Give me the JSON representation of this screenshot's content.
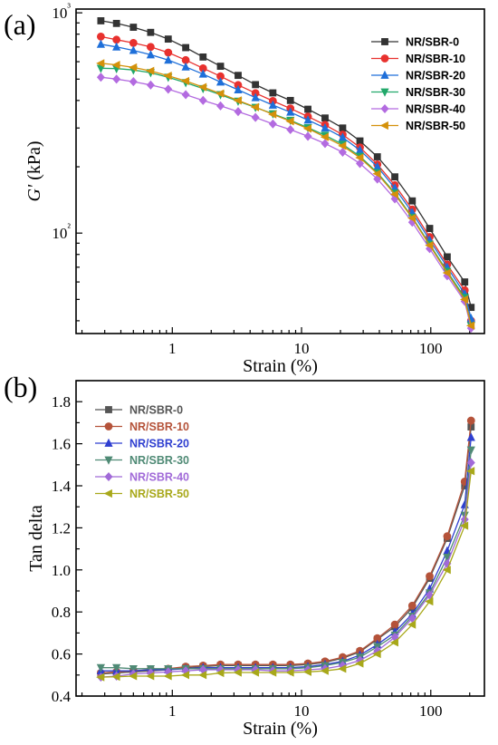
{
  "panels": [
    {
      "panel_label": "(a)",
      "chart_data": {
        "type": "line",
        "xscale": "log",
        "yscale": "log",
        "xlabel": "Strain (%)",
        "ylabel_italic": "G'",
        "ylabel_unit": " (kPa)",
        "xlim": [
          0.18,
          260
        ],
        "ylim": [
          35,
          1040
        ],
        "xticks": [
          1,
          10,
          100
        ],
        "xtick_labels": [
          "1",
          "10",
          "100"
        ],
        "yticks": [
          100,
          1000
        ],
        "ytick_labels": [
          "10²",
          "10³"
        ],
        "legend_position": "top-right",
        "legend_text_color": "black",
        "x": [
          0.28,
          0.37,
          0.5,
          0.68,
          0.93,
          1.27,
          1.73,
          2.36,
          3.23,
          4.4,
          6.0,
          8.2,
          11.2,
          15.2,
          20.8,
          28.3,
          38.6,
          52.7,
          71.9,
          98,
          134,
          183,
          205
        ],
        "series": [
          {
            "name": "NR/SBR-0",
            "color": "#333333",
            "marker": "square",
            "values": [
              920,
              895,
              860,
              815,
              760,
              695,
              630,
              572,
              520,
              472,
              433,
              400,
              365,
              333,
              300,
              262,
              222,
              180,
              140,
              105,
              78,
              60,
              46
            ]
          },
          {
            "name": "NR/SBR-10",
            "color": "#e8312e",
            "marker": "circle",
            "values": [
              780,
              755,
              730,
              700,
              660,
              610,
              560,
              515,
              470,
              432,
              398,
              368,
              338,
              310,
              280,
              245,
              205,
              165,
              128,
              96,
              72,
              55,
              40
            ]
          },
          {
            "name": "NR/SBR-20",
            "color": "#1e6fd9",
            "marker": "triangle-up",
            "values": [
              720,
              700,
              675,
              645,
              610,
              568,
              527,
              485,
              447,
              412,
              381,
              354,
              326,
              300,
              272,
              238,
              200,
              160,
              124,
              93,
              70,
              53,
              41
            ]
          },
          {
            "name": "NR/SBR-30",
            "color": "#22a86a",
            "marker": "triangle-down",
            "values": [
              560,
              558,
              550,
              535,
              510,
              482,
              453,
              425,
              397,
              372,
              348,
              325,
              301,
              278,
              253,
              223,
              188,
              152,
              118,
              89,
              67,
              51,
              38
            ]
          },
          {
            "name": "NR/SBR-40",
            "color": "#b36be0",
            "marker": "diamond",
            "values": [
              510,
              500,
              487,
              470,
              450,
              425,
              400,
              378,
              356,
              335,
              313,
              295,
              275,
              255,
              233,
              207,
              176,
              143,
              112,
              85,
              64,
              49,
              37
            ]
          },
          {
            "name": "NR/SBR-50",
            "color": "#d4910a",
            "marker": "triangle-left",
            "values": [
              590,
              580,
              565,
              545,
              518,
              490,
              460,
              430,
              400,
              373,
              346,
              322,
              298,
              273,
              249,
              220,
              186,
              150,
              117,
              88,
              66,
              50,
              38
            ]
          }
        ]
      }
    },
    {
      "panel_label": "(b)",
      "chart_data": {
        "type": "line",
        "xscale": "log",
        "yscale": "linear",
        "xlabel": "Strain (%)",
        "ylabel": "Tan delta",
        "xlim": [
          0.18,
          260
        ],
        "ylim": [
          0.4,
          1.9
        ],
        "xticks": [
          1,
          10,
          100
        ],
        "xtick_labels": [
          "1",
          "10",
          "100"
        ],
        "yticks": [
          0.4,
          0.6,
          0.8,
          1.0,
          1.2,
          1.4,
          1.6,
          1.8
        ],
        "ytick_labels": [
          "0.4",
          "0.6",
          "0.8",
          "1.0",
          "1.2",
          "1.4",
          "1.6",
          "1.8"
        ],
        "legend_position": "top-left",
        "legend_text_color": "series",
        "x": [
          0.28,
          0.37,
          0.5,
          0.68,
          0.93,
          1.27,
          1.73,
          2.36,
          3.23,
          4.4,
          6.0,
          8.2,
          11.2,
          15.2,
          20.8,
          28.3,
          38.6,
          52.7,
          71.9,
          98,
          134,
          183,
          205
        ],
        "series": [
          {
            "name": "NR/SBR-0",
            "color": "#555555",
            "marker": "square",
            "values": [
              0.505,
              0.51,
              0.515,
              0.52,
              0.525,
              0.535,
              0.54,
              0.545,
              0.545,
              0.545,
              0.545,
              0.545,
              0.55,
              0.56,
              0.58,
              0.61,
              0.67,
              0.73,
              0.82,
              0.96,
              1.15,
              1.4,
              1.68
            ]
          },
          {
            "name": "NR/SBR-10",
            "color": "#b5533a",
            "marker": "circle",
            "values": [
              0.51,
              0.515,
              0.52,
              0.525,
              0.53,
              0.54,
              0.545,
              0.55,
              0.55,
              0.55,
              0.55,
              0.55,
              0.555,
              0.565,
              0.585,
              0.615,
              0.675,
              0.74,
              0.83,
              0.97,
              1.16,
              1.42,
              1.71
            ]
          },
          {
            "name": "NR/SBR-20",
            "color": "#2f3fd0",
            "marker": "triangle-up",
            "values": [
              0.52,
              0.52,
              0.52,
              0.525,
              0.525,
              0.53,
              0.535,
              0.535,
              0.535,
              0.535,
              0.535,
              0.535,
              0.54,
              0.55,
              0.565,
              0.595,
              0.645,
              0.705,
              0.79,
              0.91,
              1.09,
              1.31,
              1.63
            ]
          },
          {
            "name": "NR/SBR-30",
            "color": "#4f8a75",
            "marker": "triangle-down",
            "values": [
              0.535,
              0.535,
              0.53,
              0.53,
              0.53,
              0.53,
              0.53,
              0.53,
              0.53,
              0.53,
              0.53,
              0.53,
              0.535,
              0.545,
              0.56,
              0.585,
              0.635,
              0.69,
              0.78,
              0.89,
              1.06,
              1.26,
              1.57
            ]
          },
          {
            "name": "NR/SBR-40",
            "color": "#a16ad8",
            "marker": "diamond",
            "values": [
              0.49,
              0.495,
              0.505,
              0.51,
              0.515,
              0.52,
              0.525,
              0.525,
              0.525,
              0.525,
              0.52,
              0.52,
              0.525,
              0.53,
              0.545,
              0.57,
              0.615,
              0.68,
              0.77,
              0.88,
              1.03,
              1.24,
              1.51
            ]
          },
          {
            "name": "NR/SBR-50",
            "color": "#a8a81a",
            "marker": "triangle-left",
            "values": [
              0.49,
              0.492,
              0.495,
              0.495,
              0.495,
              0.5,
              0.5,
              0.51,
              0.512,
              0.512,
              0.512,
              0.512,
              0.515,
              0.52,
              0.53,
              0.555,
              0.6,
              0.655,
              0.74,
              0.85,
              1.0,
              1.21,
              1.47
            ]
          }
        ]
      }
    }
  ]
}
